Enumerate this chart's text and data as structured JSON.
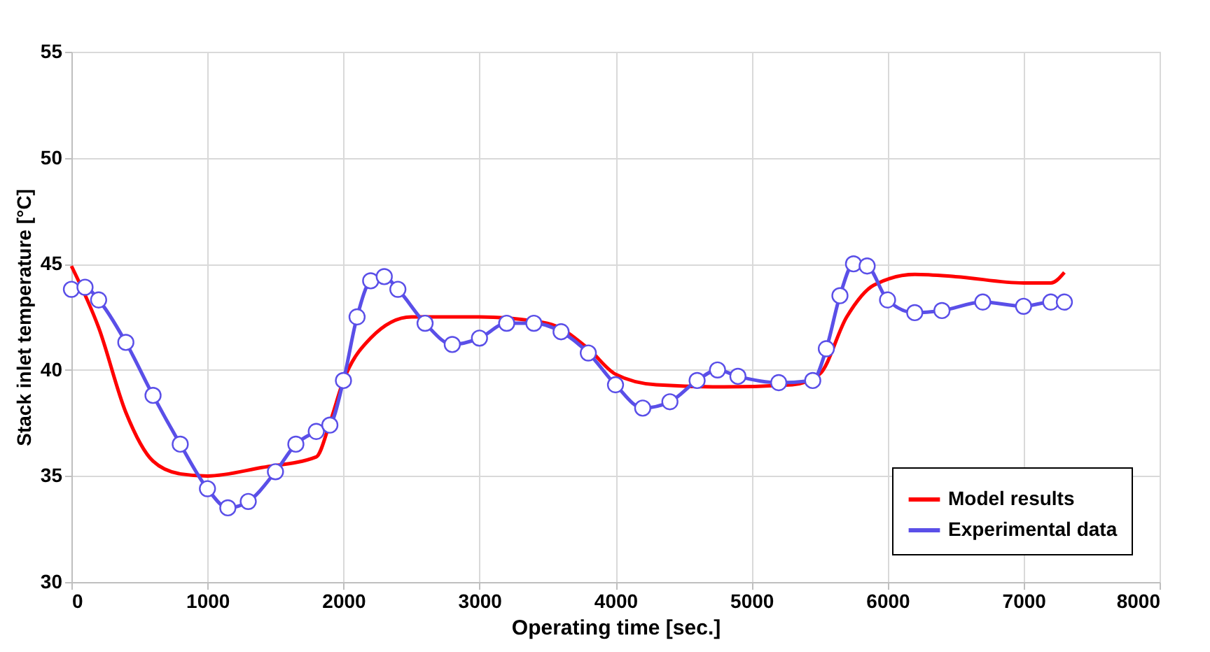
{
  "chart_data": {
    "type": "line",
    "xlabel": "Operating time [sec.]",
    "ylabel": "Stack inlet temperature [°C]",
    "xlim": [
      0,
      8000
    ],
    "xticks": [
      0,
      1000,
      2000,
      3000,
      4000,
      5000,
      6000,
      7000,
      8000
    ],
    "ylim": [
      30,
      55
    ],
    "yticks": [
      30,
      35,
      40,
      45,
      50,
      55
    ],
    "grid": true,
    "legend": "bottom right",
    "series": [
      {
        "name": "Model results",
        "color": "#ff0000",
        "marker": "none",
        "x": [
          0,
          200,
          400,
          600,
          800,
          1000,
          1400,
          1800,
          1900,
          2000,
          2200,
          2500,
          3000,
          3500,
          3800,
          4000,
          4300,
          4800,
          5300,
          5500,
          5700,
          5900,
          6200,
          6500,
          7000,
          7200,
          7300
        ],
        "values": [
          44.9,
          42,
          38,
          35.7,
          35.1,
          35.0,
          35.4,
          35.9,
          37.5,
          39.5,
          41.5,
          42.5,
          42.5,
          42.2,
          41,
          39.8,
          39.3,
          39.2,
          39.3,
          39.8,
          42.5,
          44,
          44.5,
          44.4,
          44.1,
          44.1,
          44.6
        ]
      },
      {
        "name": "Experimental data",
        "color": "#5a4fe8",
        "marker": "circle",
        "x": [
          0,
          100,
          200,
          400,
          600,
          800,
          1000,
          1150,
          1300,
          1500,
          1650,
          1800,
          1900,
          2000,
          2100,
          2200,
          2300,
          2400,
          2600,
          2800,
          3000,
          3200,
          3400,
          3600,
          3800,
          4000,
          4200,
          4400,
          4600,
          4750,
          4900,
          5200,
          5450,
          5550,
          5650,
          5750,
          5850,
          6000,
          6200,
          6400,
          6700,
          7000,
          7200,
          7300
        ],
        "values": [
          43.8,
          43.9,
          43.3,
          41.3,
          38.8,
          36.5,
          34.4,
          33.5,
          33.8,
          35.2,
          36.5,
          37.1,
          37.4,
          39.5,
          42.5,
          44.2,
          44.4,
          43.8,
          42.2,
          41.2,
          41.5,
          42.2,
          42.2,
          41.8,
          40.8,
          39.3,
          38.2,
          38.5,
          39.5,
          40.0,
          39.7,
          39.4,
          39.5,
          41,
          43.5,
          45.0,
          44.9,
          43.3,
          42.7,
          42.8,
          43.2,
          43.0,
          43.2,
          43.2
        ]
      }
    ]
  }
}
